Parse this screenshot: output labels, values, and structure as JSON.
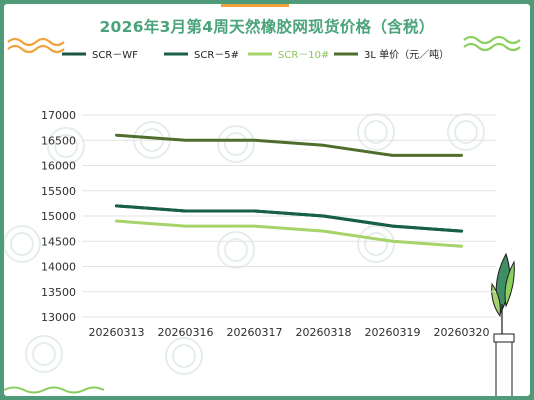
{
  "title": "2026年3月第4周天然橡胶网现货价格（含税）",
  "colors": {
    "background_frame": "#4f9a78",
    "title": "#4aa37a",
    "orange_wave": "#f2a23c",
    "green_wave": "#8ccf5e"
  },
  "chart_data": {
    "type": "line",
    "title": "2026年3月第4周天然橡胶网现货价格（含税）",
    "categories": [
      "20260313",
      "20260316",
      "20260317",
      "20260318",
      "20260319",
      "20260320"
    ],
    "series": [
      {
        "name": "SCR－WF",
        "color": "#1a5640",
        "values": [
          15200,
          15100,
          15100,
          15000,
          14800,
          14700
        ]
      },
      {
        "name": "SCR－5#",
        "color": "#175f48",
        "values": [
          15200,
          15100,
          15100,
          15000,
          14800,
          14700
        ]
      },
      {
        "name": "SCR－10#",
        "color": "#a6d36a",
        "values": [
          14900,
          14800,
          14800,
          14700,
          14500,
          14400
        ]
      },
      {
        "name": "3L 单价（元／吨）",
        "color": "#4f6e2e",
        "values": [
          16600,
          16500,
          16500,
          16400,
          16200,
          16200
        ]
      }
    ],
    "xlabel": "",
    "ylabel": "",
    "ylim": [
      13000,
      17000
    ],
    "yticks": [
      13000,
      13500,
      14000,
      14500,
      15000,
      15500,
      16000,
      16500,
      17000
    ],
    "grid": true,
    "legend": "top"
  }
}
